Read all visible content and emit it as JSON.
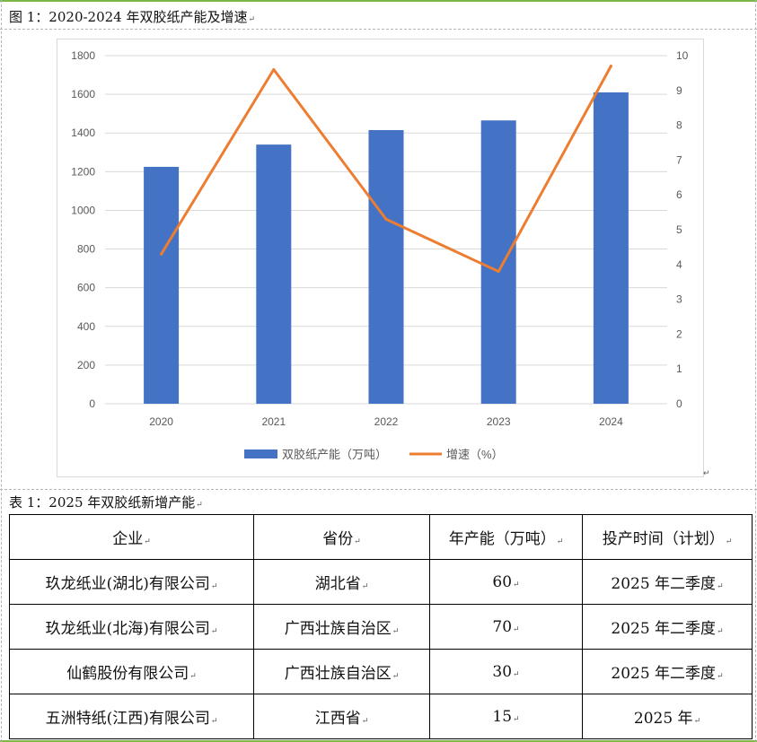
{
  "figure": {
    "caption": "图 1：2020-2024 年双胶纸产能及增速",
    "mark": "↵"
  },
  "chart_data": {
    "type": "bar",
    "categories": [
      "2020",
      "2021",
      "2022",
      "2023",
      "2024"
    ],
    "series": [
      {
        "name": "双胶纸产能（万吨）",
        "type": "bar",
        "axis": "left",
        "values": [
          1225,
          1340,
          1415,
          1465,
          1610
        ],
        "color": "#4472c4"
      },
      {
        "name": "增速（%）",
        "type": "line",
        "axis": "right",
        "values": [
          4.3,
          9.6,
          5.3,
          3.8,
          9.7
        ],
        "color": "#ed7d31"
      }
    ],
    "y_left": {
      "min": 0,
      "max": 1800,
      "ticks": [
        0,
        200,
        400,
        600,
        800,
        1000,
        1200,
        1400,
        1600,
        1800
      ]
    },
    "y_right": {
      "min": 0,
      "max": 10,
      "ticks": [
        0,
        1,
        2,
        3,
        4,
        5,
        6,
        7,
        8,
        9,
        10
      ]
    },
    "grid": true,
    "legend": "bottom"
  },
  "table": {
    "caption": "表 1：2025 年双胶纸新增产能",
    "headers": [
      "企业",
      "省份",
      "年产能（万吨）",
      "投产时间（计划）"
    ],
    "rows": [
      [
        "玖龙纸业(湖北)有限公司",
        "湖北省",
        "60",
        "2025 年二季度"
      ],
      [
        "玖龙纸业(北海)有限公司",
        "广西壮族自治区",
        "70",
        "2025 年二季度"
      ],
      [
        "仙鹤股份有限公司",
        "广西壮族自治区",
        "30",
        "2025 年二季度"
      ],
      [
        "五洲特纸(江西)有限公司",
        "江西省",
        "15",
        "2025 年"
      ]
    ]
  }
}
